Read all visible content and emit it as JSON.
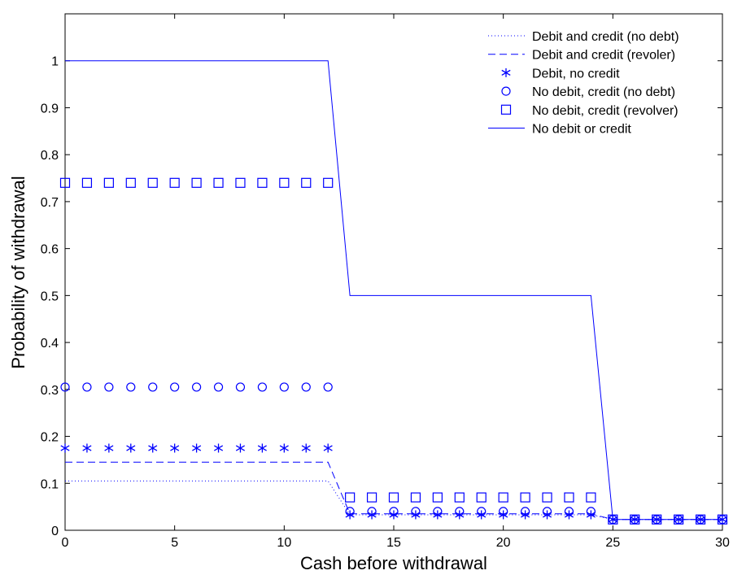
{
  "chart_data": {
    "type": "line",
    "xlabel": "Cash before withdrawal",
    "ylabel": "Probability of withdrawal",
    "xlim": [
      0,
      30
    ],
    "ylim": [
      0,
      1.1
    ],
    "xticks": [
      "0",
      "5",
      "10",
      "15",
      "20",
      "25",
      "30"
    ],
    "yticks": [
      "0",
      "0.1",
      "0.2",
      "0.3",
      "0.4",
      "0.5",
      "0.6",
      "0.7",
      "0.8",
      "0.9",
      "1"
    ],
    "grid": false,
    "legend_position": "top-right",
    "color": "#0000ff",
    "x": [
      0,
      1,
      2,
      3,
      4,
      5,
      6,
      7,
      8,
      9,
      10,
      11,
      12,
      13,
      14,
      15,
      16,
      17,
      18,
      19,
      20,
      21,
      22,
      23,
      24,
      25,
      26,
      27,
      28,
      29,
      30
    ],
    "series": [
      {
        "name": "Debit and credit (no debt)",
        "style": "dotted-line",
        "values": [
          0.105,
          0.105,
          0.105,
          0.105,
          0.105,
          0.105,
          0.105,
          0.105,
          0.105,
          0.105,
          0.105,
          0.105,
          0.105,
          0.033,
          0.033,
          0.033,
          0.033,
          0.033,
          0.033,
          0.033,
          0.033,
          0.033,
          0.033,
          0.033,
          0.033,
          0.023,
          0.023,
          0.023,
          0.023,
          0.023,
          0.023
        ]
      },
      {
        "name": "Debit and credit (revoler)",
        "style": "dashed-line",
        "values": [
          0.145,
          0.145,
          0.145,
          0.145,
          0.145,
          0.145,
          0.145,
          0.145,
          0.145,
          0.145,
          0.145,
          0.145,
          0.145,
          0.035,
          0.035,
          0.035,
          0.035,
          0.035,
          0.035,
          0.035,
          0.035,
          0.035,
          0.035,
          0.035,
          0.035,
          0.023,
          0.023,
          0.023,
          0.023,
          0.023,
          0.023
        ]
      },
      {
        "name": "Debit, no credit",
        "style": "asterisk-markers",
        "values": [
          0.175,
          0.175,
          0.175,
          0.175,
          0.175,
          0.175,
          0.175,
          0.175,
          0.175,
          0.175,
          0.175,
          0.175,
          0.175,
          0.033,
          0.033,
          0.033,
          0.033,
          0.033,
          0.033,
          0.033,
          0.033,
          0.033,
          0.033,
          0.033,
          0.033,
          0.023,
          0.023,
          0.023,
          0.023,
          0.023,
          0.023
        ]
      },
      {
        "name": "No debit, credit (no debt)",
        "style": "circle-markers",
        "values": [
          0.305,
          0.305,
          0.305,
          0.305,
          0.305,
          0.305,
          0.305,
          0.305,
          0.305,
          0.305,
          0.305,
          0.305,
          0.305,
          0.04,
          0.04,
          0.04,
          0.04,
          0.04,
          0.04,
          0.04,
          0.04,
          0.04,
          0.04,
          0.04,
          0.04,
          0.023,
          0.023,
          0.023,
          0.023,
          0.023,
          0.023
        ]
      },
      {
        "name": "No debit, credit (revolver)",
        "style": "square-markers",
        "values": [
          0.74,
          0.74,
          0.74,
          0.74,
          0.74,
          0.74,
          0.74,
          0.74,
          0.74,
          0.74,
          0.74,
          0.74,
          0.74,
          0.07,
          0.07,
          0.07,
          0.07,
          0.07,
          0.07,
          0.07,
          0.07,
          0.07,
          0.07,
          0.07,
          0.07,
          0.023,
          0.023,
          0.023,
          0.023,
          0.023,
          0.023
        ]
      },
      {
        "name": "No debit or credit",
        "style": "solid-line",
        "values": [
          1,
          1,
          1,
          1,
          1,
          1,
          1,
          1,
          1,
          1,
          1,
          1,
          1,
          0.5,
          0.5,
          0.5,
          0.5,
          0.5,
          0.5,
          0.5,
          0.5,
          0.5,
          0.5,
          0.5,
          0.5,
          0.023,
          0.023,
          0.023,
          0.023,
          0.023,
          0.023
        ]
      }
    ]
  }
}
